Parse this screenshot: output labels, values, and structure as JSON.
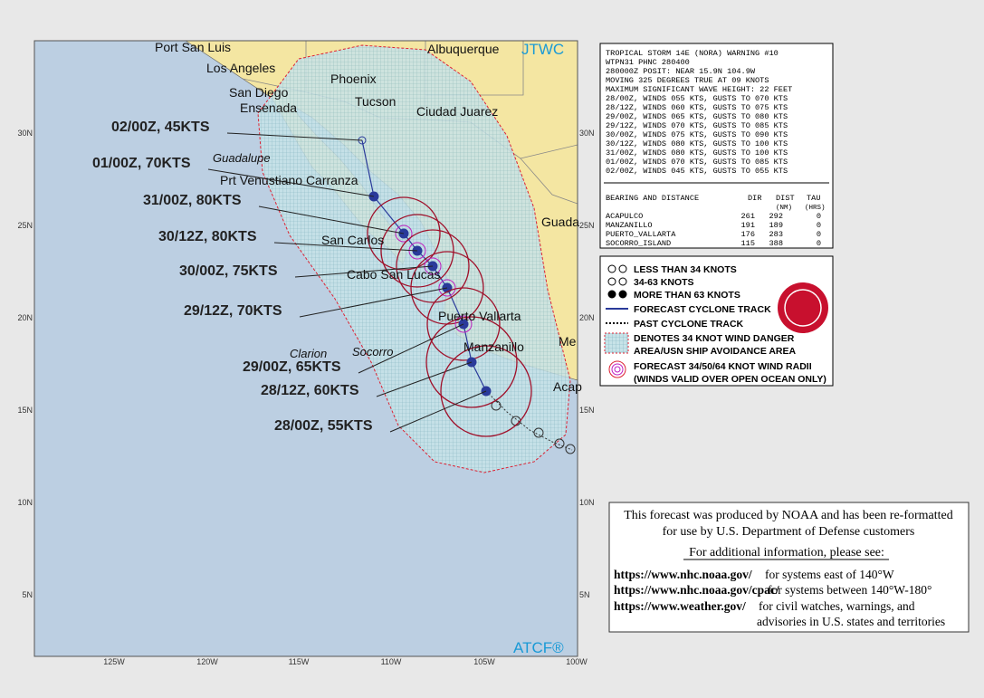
{
  "map": {
    "logo_top": "JTWC",
    "logo_bottom": "ATCF®",
    "lon_labels": [
      "125W",
      "120W",
      "115W",
      "110W",
      "105W",
      "100W"
    ],
    "lat_labels": [
      "30N",
      "25N",
      "20N",
      "15N",
      "10N",
      "5N"
    ],
    "places": [
      "Port San Luis",
      "Los Angeles",
      "San Diego",
      "Ensenada",
      "Albuquerque",
      "Phoenix",
      "Tucson",
      "Ciudad Juarez",
      "Guadalupe",
      "Prt Venustiano Carranza",
      "San Carlos",
      "Cabo San Lucas",
      "Puerto Vallarta",
      "Manzanillo",
      "Clarion",
      "Socorro",
      "Guada",
      "Me",
      "Acap"
    ],
    "forecast_labels": [
      "02/00Z, 45KTS",
      "01/00Z, 70KTS",
      "31/00Z, 80KTS",
      "30/12Z, 80KTS",
      "30/00Z, 75KTS",
      "29/12Z, 70KTS",
      "29/00Z, 65KTS",
      "28/12Z, 60KTS",
      "28/00Z, 55KTS"
    ]
  },
  "warning": {
    "lines": [
      "TROPICAL STORM 14E (NORA) WARNING #10",
      "WTPN31 PHNC 280400",
      "280000Z POSIT: NEAR 15.9N 104.9W",
      "MOVING 325 DEGREES TRUE AT 09 KNOTS",
      "MAXIMUM SIGNIFICANT WAVE HEIGHT: 22 FEET",
      "28/00Z, WINDS 055 KTS, GUSTS TO 070 KTS",
      "28/12Z, WINDS 060 KTS, GUSTS TO 075 KTS",
      "29/00Z, WINDS 065 KTS, GUSTS TO 080 KTS",
      "29/12Z, WINDS 070 KTS, GUSTS TO 085 KTS",
      "30/00Z, WINDS 075 KTS, GUSTS TO 090 KTS",
      "30/12Z, WINDS 080 KTS, GUSTS TO 100 KTS",
      "31/00Z, WINDS 080 KTS, GUSTS TO 100 KTS",
      "01/00Z, WINDS 070 KTS, GUSTS TO 085 KTS",
      "02/00Z, WINDS 045 KTS, GUSTS TO 055 KTS"
    ],
    "table_header": [
      "BEARING AND DISTANCE",
      "DIR",
      "DIST",
      "TAU"
    ],
    "table_units": [
      "(NM)",
      "(HRS)"
    ],
    "table_rows": [
      [
        "ACAPULCO",
        261,
        292,
        0
      ],
      [
        "MANZANILLO",
        191,
        189,
        0
      ],
      [
        "PUERTO_VALLARTA",
        176,
        283,
        0
      ],
      [
        "SOCORRO_ISLAND",
        115,
        388,
        0
      ]
    ]
  },
  "legend": {
    "items": [
      "LESS THAN 34 KNOTS",
      "34-63 KNOTS",
      "MORE THAN 63 KNOTS",
      "FORECAST CYCLONE TRACK",
      "PAST CYCLONE TRACK",
      "DENOTES 34 KNOT WIND DANGER",
      "AREA/USN SHIP AVOIDANCE AREA",
      "FORECAST 34/50/64 KNOT WIND RADII",
      "(WINDS VALID OVER OPEN OCEAN ONLY)"
    ]
  },
  "notice": {
    "lines": [
      "This forecast was produced by NOAA and has been re-formatted",
      "for use by U.S. Department of Defense customers",
      "For additional information, please see:"
    ],
    "links": [
      [
        "https://www.nhc.noaa.gov/",
        "for systems east of 140°W"
      ],
      [
        "https://www.nhc.noaa.gov/cpac/",
        "for systems between 140°W-180°"
      ],
      [
        "https://www.weather.gov/",
        "for civil watches, warnings, and"
      ]
    ],
    "last_line": "advisories in U.S. states and territories"
  }
}
